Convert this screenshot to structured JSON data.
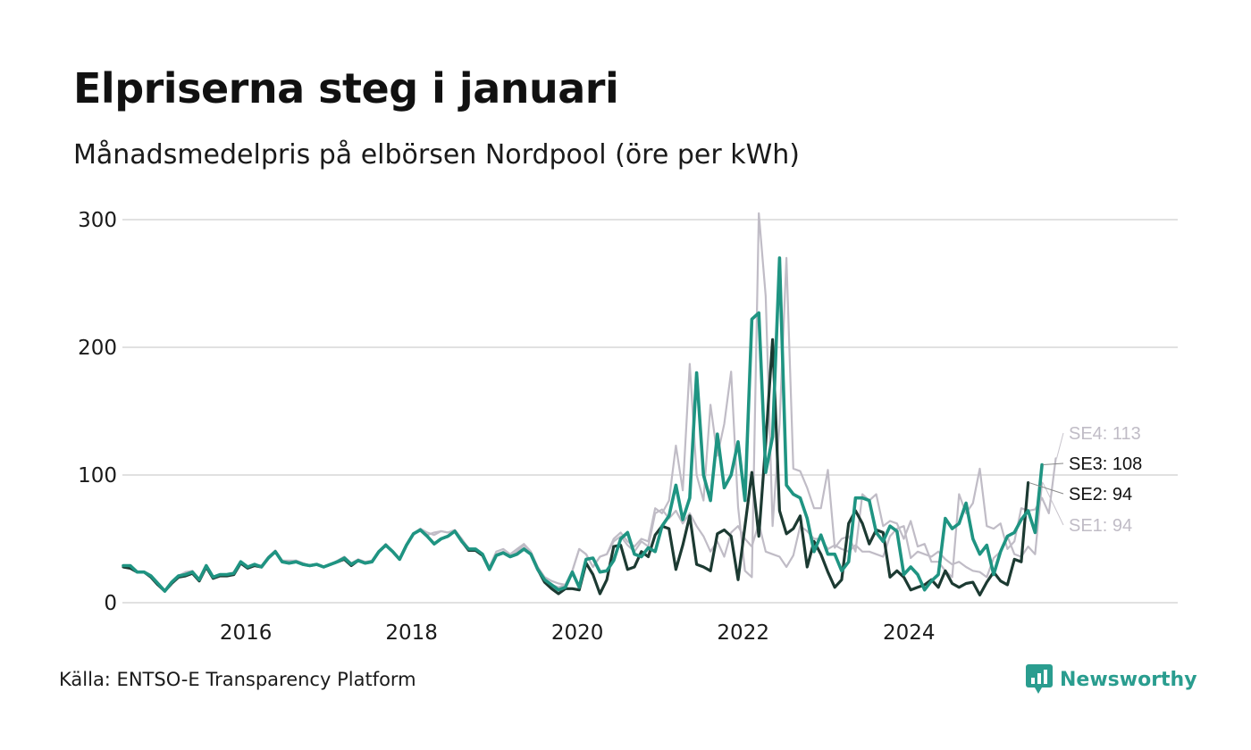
{
  "title": "Elpriserna steg i januari",
  "subtitle": "Månadsmedelpris på elbörsen Nordpool (öre per kWh)",
  "source": "Källa: ENTSO-E Transparency Platform",
  "brand": {
    "name": "Newsworthy",
    "icon": "newsworthy-logo-icon",
    "color": "#2a9d8f"
  },
  "chart_data": {
    "type": "line",
    "title": "Elpriserna steg i januari",
    "subtitle": "Månadsmedelpris på elbörsen Nordpool (öre per kWh)",
    "xlabel": "",
    "ylabel": "öre per kWh",
    "x_start": "2015-01",
    "x_end": "2026-01",
    "x_ticks": [
      "2016",
      "2018",
      "2020",
      "2022",
      "2024"
    ],
    "y_ticks": [
      "0",
      "100",
      "200",
      "300"
    ],
    "ylim": [
      0,
      300
    ],
    "grid": true,
    "series": [
      {
        "name": "SE1",
        "end_label": "SE1: 94",
        "color": "#c0bcc6",
        "values": [
          28,
          28,
          24,
          24,
          20,
          15,
          10,
          16,
          21,
          23,
          25,
          18,
          29,
          20,
          22,
          22,
          23,
          32,
          28,
          30,
          28,
          35,
          40,
          32,
          32,
          33,
          31,
          29,
          30,
          28,
          30,
          32,
          35,
          30,
          34,
          31,
          33,
          40,
          46,
          40,
          34,
          45,
          54,
          58,
          55,
          53,
          56,
          55,
          56,
          50,
          42,
          42,
          38,
          28,
          38,
          40,
          36,
          40,
          45,
          38,
          25,
          18,
          14,
          12,
          14,
          25,
          42,
          38,
          28,
          36,
          38,
          48,
          52,
          45,
          40,
          48,
          44,
          70,
          73,
          66,
          72,
          62,
          70,
          60,
          52,
          40,
          48,
          36,
          55,
          60,
          50,
          44,
          62,
          40,
          38,
          36,
          28,
          37,
          60,
          56,
          50,
          50,
          42,
          45,
          42,
          40,
          45,
          40,
          40,
          38,
          36,
          52,
          58,
          60,
          35,
          40,
          38,
          36,
          40,
          34,
          30,
          32,
          28,
          25,
          24,
          20,
          35,
          40,
          52,
          38,
          36,
          44,
          38,
          94
        ]
      },
      {
        "name": "SE4",
        "end_label": "SE4: 113",
        "color": "#c0bcc6",
        "values": [
          28,
          28,
          24,
          24,
          21,
          15,
          9,
          16,
          21,
          24,
          25,
          18,
          29,
          20,
          22,
          22,
          24,
          32,
          28,
          30,
          29,
          36,
          41,
          33,
          33,
          33,
          31,
          29,
          30,
          28,
          30,
          33,
          36,
          31,
          34,
          32,
          33,
          40,
          46,
          40,
          34,
          45,
          54,
          58,
          53,
          55,
          56,
          55,
          57,
          50,
          42,
          42,
          38,
          28,
          40,
          42,
          38,
          42,
          46,
          40,
          28,
          20,
          17,
          15,
          14,
          25,
          42,
          38,
          28,
          36,
          38,
          50,
          55,
          48,
          44,
          50,
          48,
          74,
          70,
          80,
          123,
          88,
          187,
          100,
          80,
          155,
          115,
          140,
          181,
          75,
          25,
          20,
          305,
          240,
          60,
          140,
          270,
          105,
          103,
          90,
          74,
          74,
          104,
          43,
          50,
          52,
          40,
          85,
          80,
          85,
          60,
          64,
          62,
          50,
          64,
          44,
          46,
          32,
          32,
          25,
          20,
          85,
          70,
          78,
          105,
          60,
          58,
          62,
          42,
          48,
          74,
          72,
          73,
          82,
          70,
          113
        ]
      },
      {
        "name": "SE2",
        "end_label": "SE2: 94",
        "color": "#1c3a32",
        "values": [
          28,
          27,
          24,
          24,
          20,
          14,
          9,
          15,
          20,
          21,
          23,
          17,
          28,
          19,
          21,
          21,
          22,
          31,
          27,
          29,
          28,
          35,
          40,
          32,
          31,
          32,
          30,
          29,
          30,
          28,
          30,
          32,
          34,
          29,
          33,
          31,
          32,
          40,
          45,
          40,
          34,
          45,
          54,
          57,
          52,
          46,
          50,
          52,
          56,
          48,
          41,
          41,
          37,
          26,
          37,
          39,
          36,
          38,
          42,
          38,
          26,
          16,
          11,
          7,
          11,
          11,
          10,
          31,
          22,
          7,
          18,
          44,
          45,
          26,
          28,
          40,
          36,
          53,
          60,
          58,
          26,
          45,
          68,
          30,
          28,
          25,
          54,
          57,
          52,
          18,
          60,
          102,
          52,
          125,
          206,
          72,
          54,
          58,
          68,
          28,
          48,
          38,
          24,
          12,
          18,
          62,
          72,
          62,
          46,
          57,
          55,
          20,
          25,
          20,
          10,
          12,
          14,
          18,
          12,
          25,
          15,
          12,
          15,
          16,
          6,
          16,
          24,
          17,
          14,
          34,
          32,
          94
        ]
      },
      {
        "name": "SE3",
        "end_label": "SE3: 108",
        "color": "#1f9482",
        "values": [
          29,
          29,
          24,
          24,
          21,
          15,
          9,
          16,
          21,
          22,
          24,
          18,
          29,
          20,
          22,
          22,
          23,
          32,
          28,
          30,
          28,
          35,
          40,
          32,
          31,
          32,
          30,
          29,
          30,
          28,
          30,
          32,
          35,
          30,
          33,
          31,
          32,
          40,
          45,
          40,
          34,
          45,
          54,
          57,
          52,
          46,
          50,
          52,
          56,
          48,
          42,
          42,
          38,
          26,
          37,
          39,
          36,
          38,
          42,
          38,
          26,
          18,
          14,
          10,
          12,
          24,
          12,
          34,
          35,
          24,
          25,
          33,
          50,
          55,
          38,
          36,
          43,
          40,
          60,
          68,
          92,
          65,
          82,
          180,
          100,
          80,
          132,
          90,
          100,
          126,
          80,
          222,
          227,
          102,
          130,
          270,
          92,
          85,
          82,
          66,
          40,
          53,
          38,
          38,
          25,
          32,
          82,
          82,
          80,
          55,
          48,
          60,
          56,
          22,
          28,
          22,
          10,
          17,
          22,
          66,
          58,
          62,
          78,
          50,
          38,
          45,
          22,
          40,
          52,
          55,
          65,
          72,
          55,
          108
        ]
      }
    ]
  }
}
